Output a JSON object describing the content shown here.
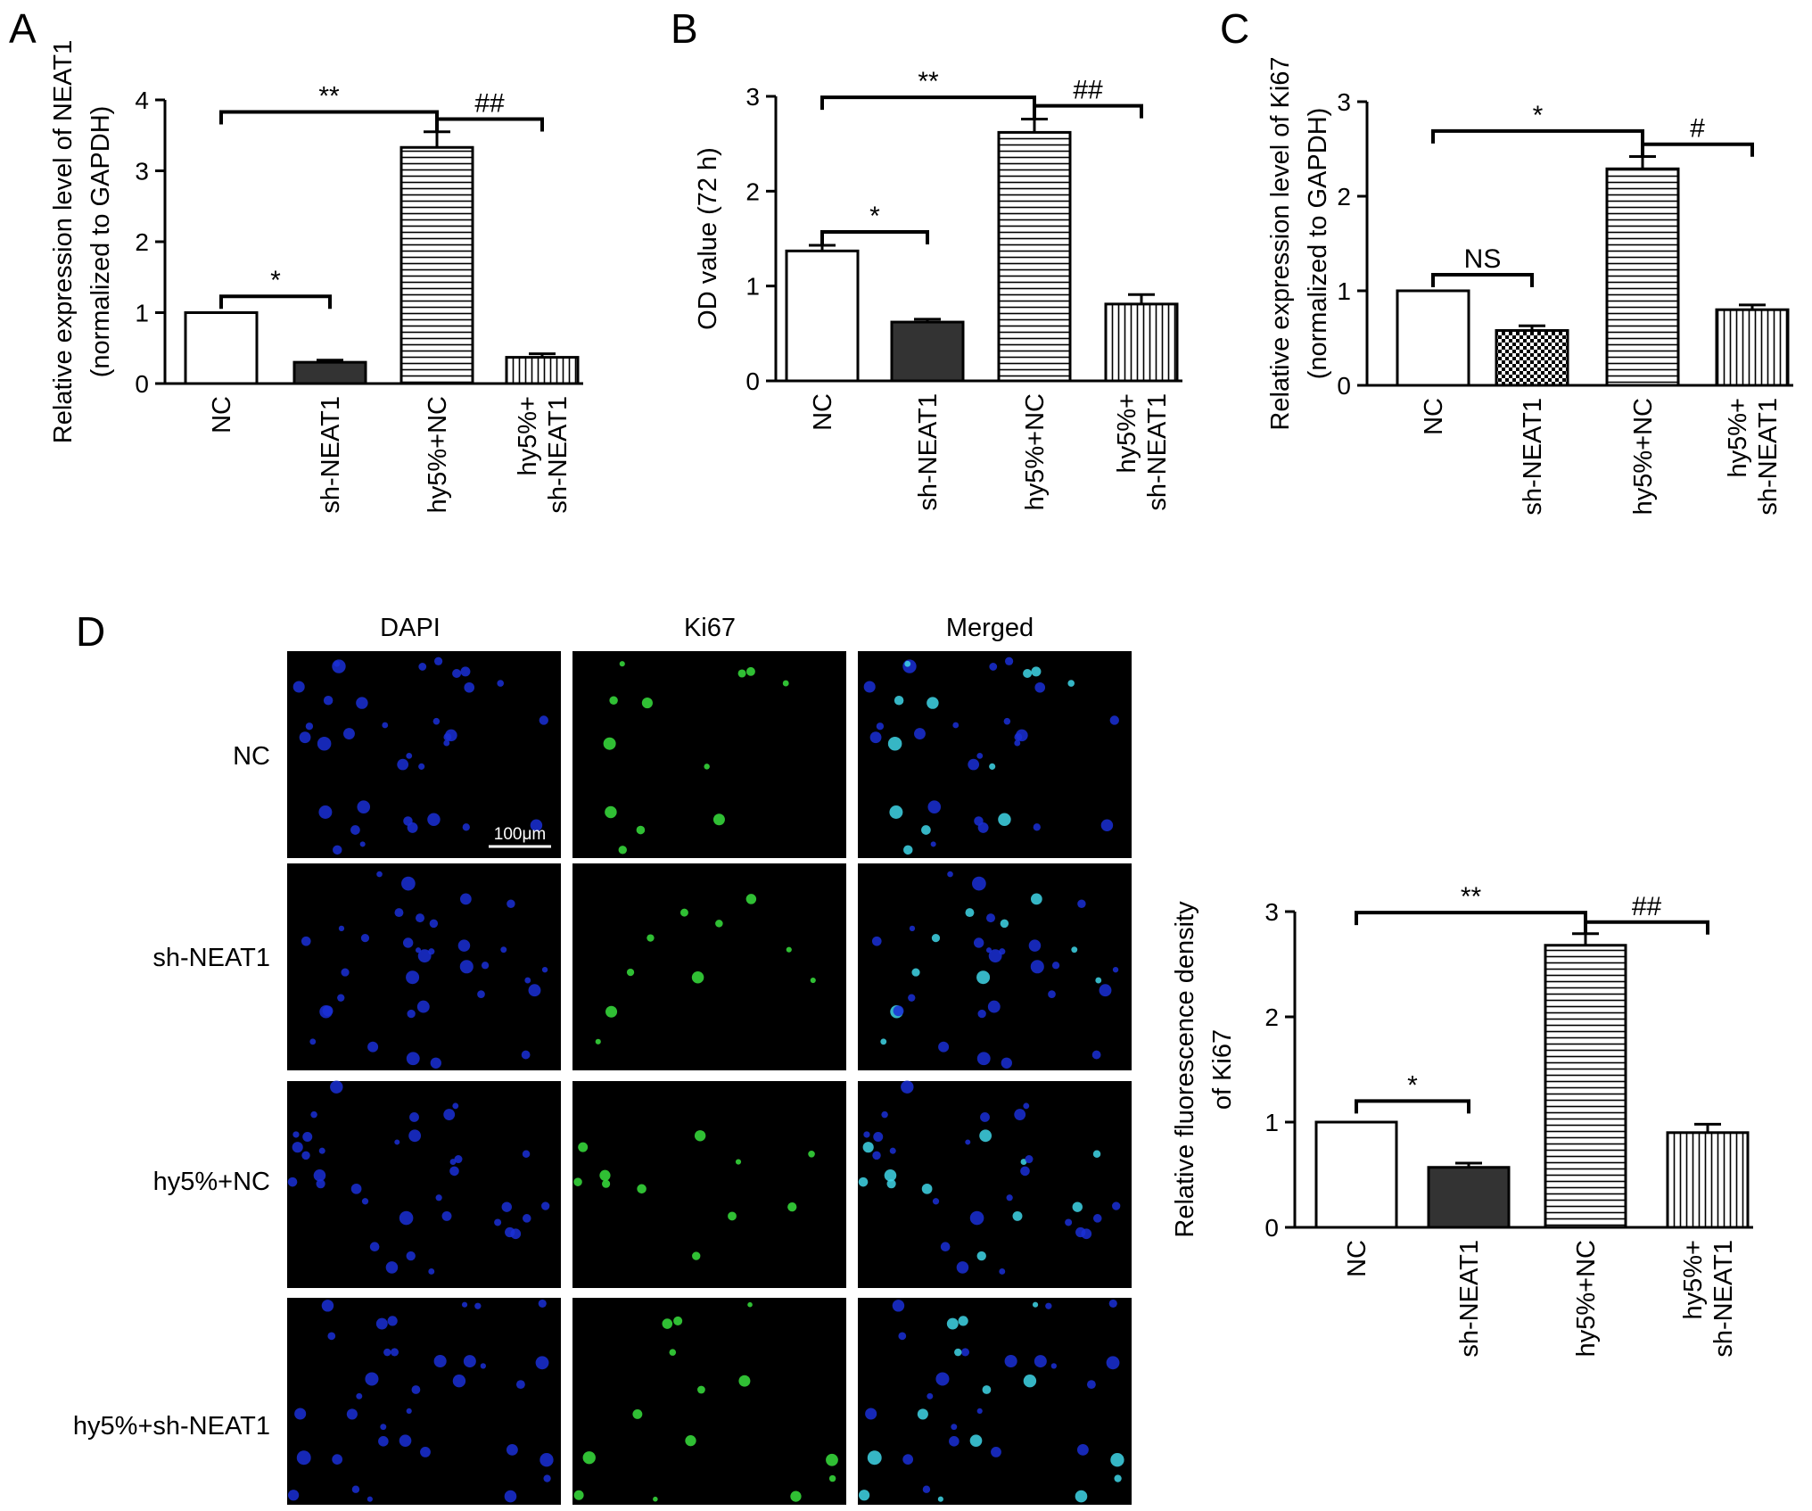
{
  "panels": {
    "A": {
      "letter": "A"
    },
    "B": {
      "letter": "B"
    },
    "C": {
      "letter": "C"
    },
    "D": {
      "letter": "D",
      "columns": [
        "DAPI",
        "Ki67",
        "Merged"
      ],
      "rows": [
        "NC",
        "sh-NEAT1",
        "hy5%+NC",
        "hy5%+sh-NEAT1"
      ],
      "scale_bar": "100μm"
    }
  },
  "colors": {
    "nc_fill": "#ffffff",
    "sh_fill": "#333333",
    "axis": "#000000",
    "micro_bg": "#000000",
    "dapi": "#1a2fd6",
    "ki67": "#35d43a",
    "merged_overlap": "#3fd6e8"
  },
  "chart_data": [
    {
      "id": "A",
      "type": "bar",
      "categories": [
        [
          "NC"
        ],
        [
          "sh-NEAT1"
        ],
        [
          "hy5%+NC"
        ],
        [
          "hy5%+",
          "sh-NEAT1"
        ]
      ],
      "values": [
        1.0,
        0.3,
        3.33,
        0.37
      ],
      "errors": [
        0.0,
        0.03,
        0.22,
        0.05
      ],
      "fills": [
        "white",
        "dark",
        "hstripe",
        "vstripe"
      ],
      "ylabel": [
        "Relative expression level of NEAT1",
        "(normalized to GAPDH)"
      ],
      "ylim": [
        0,
        4
      ],
      "yticks": [
        0,
        1,
        2,
        3,
        4
      ],
      "significance": [
        {
          "from": 0,
          "to": 1,
          "label": "*",
          "y": 1.23
        },
        {
          "from": 0,
          "to": 2,
          "label": "**",
          "y": 3.83
        },
        {
          "from": 2,
          "to": 3,
          "label": "##",
          "y": 3.73
        }
      ]
    },
    {
      "id": "B",
      "type": "bar",
      "categories": [
        [
          "NC"
        ],
        [
          "sh-NEAT1"
        ],
        [
          "hy5%+NC"
        ],
        [
          "hy5%+",
          "sh-NEAT1"
        ]
      ],
      "values": [
        1.37,
        0.62,
        2.62,
        0.81
      ],
      "errors": [
        0.06,
        0.03,
        0.14,
        0.1
      ],
      "fills": [
        "white",
        "dark",
        "hstripe",
        "vstripe"
      ],
      "ylabel": [
        "OD value (72 h)"
      ],
      "ylim": [
        0,
        3
      ],
      "yticks": [
        0,
        1,
        2,
        3
      ],
      "significance": [
        {
          "from": 0,
          "to": 1,
          "label": "*",
          "y": 1.57
        },
        {
          "from": 0,
          "to": 2,
          "label": "**",
          "y": 2.99
        },
        {
          "from": 2,
          "to": 3,
          "label": "##",
          "y": 2.9
        }
      ]
    },
    {
      "id": "C",
      "type": "bar",
      "categories": [
        [
          "NC"
        ],
        [
          "sh-NEAT1"
        ],
        [
          "hy5%+NC"
        ],
        [
          "hy5%+",
          "sh-NEAT1"
        ]
      ],
      "values": [
        1.0,
        0.58,
        2.29,
        0.8
      ],
      "errors": [
        0.0,
        0.05,
        0.13,
        0.05
      ],
      "fills": [
        "white",
        "checker",
        "hstripe",
        "vstripe"
      ],
      "ylabel": [
        "Relative expression level of Ki67",
        "(normalized to GAPDH)"
      ],
      "ylim": [
        0,
        3
      ],
      "yticks": [
        0,
        1,
        2,
        3
      ],
      "significance": [
        {
          "from": 0,
          "to": 1,
          "label": "NS",
          "y": 1.17
        },
        {
          "from": 0,
          "to": 2,
          "label": "*",
          "y": 2.69
        },
        {
          "from": 2,
          "to": 3,
          "label": "#",
          "y": 2.55
        }
      ]
    },
    {
      "id": "D",
      "type": "bar",
      "categories": [
        [
          "NC"
        ],
        [
          "sh-NEAT1"
        ],
        [
          "hy5%+NC"
        ],
        [
          "hy5%+",
          "sh-NEAT1"
        ]
      ],
      "values": [
        1.0,
        0.57,
        2.68,
        0.9
      ],
      "errors": [
        0.0,
        0.04,
        0.11,
        0.08
      ],
      "fills": [
        "white",
        "dark",
        "hstripe",
        "vstripe"
      ],
      "ylabel": [
        "Relative fluorescence density",
        "of Ki67"
      ],
      "ylim": [
        0,
        3
      ],
      "yticks": [
        0,
        1,
        2,
        3
      ],
      "significance": [
        {
          "from": 0,
          "to": 1,
          "label": "*",
          "y": 1.2
        },
        {
          "from": 0,
          "to": 2,
          "label": "**",
          "y": 2.99
        },
        {
          "from": 2,
          "to": 3,
          "label": "##",
          "y": 2.9
        }
      ]
    }
  ]
}
